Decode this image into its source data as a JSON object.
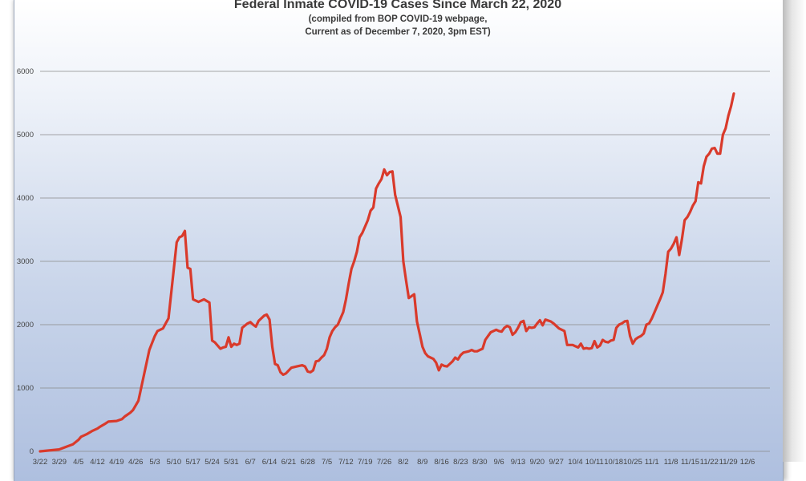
{
  "chart_data": {
    "type": "line",
    "title": "Federal Inmate COVID-19 Cases Since March 22, 2020",
    "subtitle_line1": "(compiled from BOP COVID-19 webpage,",
    "subtitle_line2": "Current as of December 7, 2020, 3pm EST)",
    "xlabel": "",
    "ylabel": "",
    "ylim": [
      0,
      6000
    ],
    "yticks": [
      0,
      1000,
      2000,
      3000,
      4000,
      5000,
      6000
    ],
    "grid": true,
    "line_color": "#d93a2b",
    "x_tick_labels": [
      "3/22",
      "3/29",
      "4/5",
      "4/12",
      "4/19",
      "4/26",
      "5/3",
      "5/10",
      "5/17",
      "5/24",
      "5/31",
      "6/7",
      "6/14",
      "6/21",
      "6/28",
      "7/5",
      "7/12",
      "7/19",
      "7/26",
      "8/2",
      "8/9",
      "8/16",
      "8/23",
      "8/30",
      "9/6",
      "9/13",
      "9/20",
      "9/27",
      "10/4",
      "10/11",
      "10/18",
      "10/25",
      "11/1",
      "11/8",
      "11/15",
      "11/22",
      "11/29",
      "12/6"
    ],
    "series": [
      {
        "points": [
          [
            0,
            0
          ],
          [
            7,
            30
          ],
          [
            10,
            80
          ],
          [
            12,
            110
          ],
          [
            14,
            180
          ],
          [
            15,
            230
          ],
          [
            17,
            270
          ],
          [
            19,
            320
          ],
          [
            21,
            360
          ],
          [
            22,
            390
          ],
          [
            24,
            440
          ],
          [
            25,
            470
          ],
          [
            28,
            480
          ],
          [
            30,
            510
          ],
          [
            31,
            550
          ],
          [
            33,
            610
          ],
          [
            34,
            650
          ],
          [
            36,
            800
          ],
          [
            38,
            1200
          ],
          [
            40,
            1600
          ],
          [
            42,
            1820
          ],
          [
            43,
            1900
          ],
          [
            45,
            1940
          ],
          [
            46,
            2020
          ],
          [
            47,
            2100
          ],
          [
            49,
            2900
          ],
          [
            50,
            3300
          ],
          [
            51,
            3380
          ],
          [
            52,
            3400
          ],
          [
            53,
            3480
          ],
          [
            54,
            2900
          ],
          [
            55,
            2880
          ],
          [
            56,
            2400
          ],
          [
            58,
            2360
          ],
          [
            60,
            2400
          ],
          [
            62,
            2350
          ],
          [
            63,
            1750
          ],
          [
            64,
            1720
          ],
          [
            66,
            1620
          ],
          [
            67,
            1640
          ],
          [
            68,
            1650
          ],
          [
            69,
            1800
          ],
          [
            70,
            1650
          ],
          [
            71,
            1700
          ],
          [
            72,
            1680
          ],
          [
            73,
            1700
          ],
          [
            74,
            1950
          ],
          [
            76,
            2020
          ],
          [
            77,
            2040
          ],
          [
            78,
            2000
          ],
          [
            79,
            1970
          ],
          [
            80,
            2060
          ],
          [
            82,
            2140
          ],
          [
            83,
            2160
          ],
          [
            84,
            2080
          ],
          [
            85,
            1650
          ],
          [
            86,
            1380
          ],
          [
            87,
            1360
          ],
          [
            88,
            1250
          ],
          [
            89,
            1210
          ],
          [
            90,
            1230
          ],
          [
            92,
            1320
          ],
          [
            94,
            1340
          ],
          [
            96,
            1360
          ],
          [
            97,
            1340
          ],
          [
            98,
            1260
          ],
          [
            99,
            1250
          ],
          [
            100,
            1280
          ],
          [
            101,
            1420
          ],
          [
            102,
            1430
          ],
          [
            103,
            1480
          ],
          [
            104,
            1520
          ],
          [
            105,
            1620
          ],
          [
            106,
            1800
          ],
          [
            107,
            1900
          ],
          [
            108,
            1960
          ],
          [
            109,
            2000
          ],
          [
            111,
            2200
          ],
          [
            112,
            2400
          ],
          [
            113,
            2650
          ],
          [
            114,
            2880
          ],
          [
            115,
            3000
          ],
          [
            116,
            3150
          ],
          [
            117,
            3380
          ],
          [
            118,
            3450
          ],
          [
            120,
            3650
          ],
          [
            121,
            3800
          ],
          [
            122,
            3850
          ],
          [
            123,
            4150
          ],
          [
            124,
            4230
          ],
          [
            125,
            4300
          ],
          [
            126,
            4450
          ],
          [
            127,
            4360
          ],
          [
            128,
            4410
          ],
          [
            129,
            4420
          ],
          [
            130,
            4050
          ],
          [
            132,
            3700
          ],
          [
            133,
            3000
          ],
          [
            134,
            2700
          ],
          [
            135,
            2420
          ],
          [
            137,
            2480
          ],
          [
            138,
            2050
          ],
          [
            139,
            1850
          ],
          [
            140,
            1650
          ],
          [
            141,
            1550
          ],
          [
            142,
            1500
          ],
          [
            144,
            1460
          ],
          [
            145,
            1400
          ],
          [
            146,
            1280
          ],
          [
            147,
            1370
          ],
          [
            148,
            1350
          ],
          [
            149,
            1340
          ],
          [
            150,
            1380
          ],
          [
            151,
            1420
          ],
          [
            152,
            1480
          ],
          [
            153,
            1450
          ],
          [
            154,
            1520
          ],
          [
            155,
            1560
          ],
          [
            157,
            1580
          ],
          [
            158,
            1600
          ],
          [
            159,
            1580
          ],
          [
            160,
            1580
          ],
          [
            161,
            1600
          ],
          [
            162,
            1620
          ],
          [
            163,
            1760
          ],
          [
            164,
            1820
          ],
          [
            165,
            1880
          ],
          [
            167,
            1920
          ],
          [
            168,
            1900
          ],
          [
            169,
            1890
          ],
          [
            170,
            1950
          ],
          [
            171,
            1980
          ],
          [
            172,
            1960
          ],
          [
            173,
            1840
          ],
          [
            174,
            1880
          ],
          [
            175,
            1950
          ],
          [
            176,
            2040
          ],
          [
            177,
            2060
          ],
          [
            178,
            1900
          ],
          [
            179,
            1960
          ],
          [
            180,
            1950
          ],
          [
            181,
            1960
          ],
          [
            182,
            2020
          ],
          [
            183,
            2070
          ],
          [
            184,
            1990
          ],
          [
            185,
            2080
          ],
          [
            187,
            2050
          ],
          [
            188,
            2020
          ],
          [
            189,
            1980
          ],
          [
            190,
            1940
          ],
          [
            191,
            1920
          ],
          [
            192,
            1900
          ],
          [
            193,
            1680
          ],
          [
            195,
            1680
          ],
          [
            196,
            1660
          ],
          [
            197,
            1640
          ],
          [
            198,
            1700
          ],
          [
            199,
            1620
          ],
          [
            200,
            1630
          ],
          [
            201,
            1620
          ],
          [
            202,
            1630
          ],
          [
            203,
            1740
          ],
          [
            204,
            1640
          ],
          [
            205,
            1670
          ],
          [
            206,
            1760
          ],
          [
            207,
            1730
          ],
          [
            208,
            1720
          ],
          [
            209,
            1750
          ],
          [
            210,
            1760
          ],
          [
            211,
            1950
          ],
          [
            212,
            2000
          ],
          [
            213,
            2020
          ],
          [
            214,
            2050
          ],
          [
            215,
            2060
          ],
          [
            216,
            1820
          ],
          [
            217,
            1700
          ],
          [
            218,
            1770
          ],
          [
            219,
            1800
          ],
          [
            220,
            1820
          ],
          [
            221,
            1860
          ],
          [
            222,
            2000
          ],
          [
            223,
            2020
          ],
          [
            224,
            2100
          ],
          [
            225,
            2200
          ],
          [
            226,
            2300
          ],
          [
            227,
            2400
          ],
          [
            228,
            2510
          ],
          [
            229,
            2800
          ],
          [
            230,
            3150
          ],
          [
            231,
            3200
          ],
          [
            232,
            3280
          ],
          [
            233,
            3380
          ],
          [
            234,
            3100
          ],
          [
            235,
            3350
          ],
          [
            236,
            3650
          ],
          [
            237,
            3700
          ],
          [
            238,
            3780
          ],
          [
            239,
            3880
          ],
          [
            240,
            3950
          ],
          [
            241,
            4250
          ],
          [
            242,
            4230
          ],
          [
            243,
            4500
          ],
          [
            244,
            4650
          ],
          [
            245,
            4700
          ],
          [
            246,
            4780
          ],
          [
            247,
            4790
          ],
          [
            248,
            4700
          ],
          [
            249,
            4700
          ],
          [
            250,
            5000
          ],
          [
            251,
            5100
          ],
          [
            252,
            5300
          ],
          [
            253,
            5450
          ],
          [
            254,
            5650
          ]
        ]
      }
    ]
  }
}
